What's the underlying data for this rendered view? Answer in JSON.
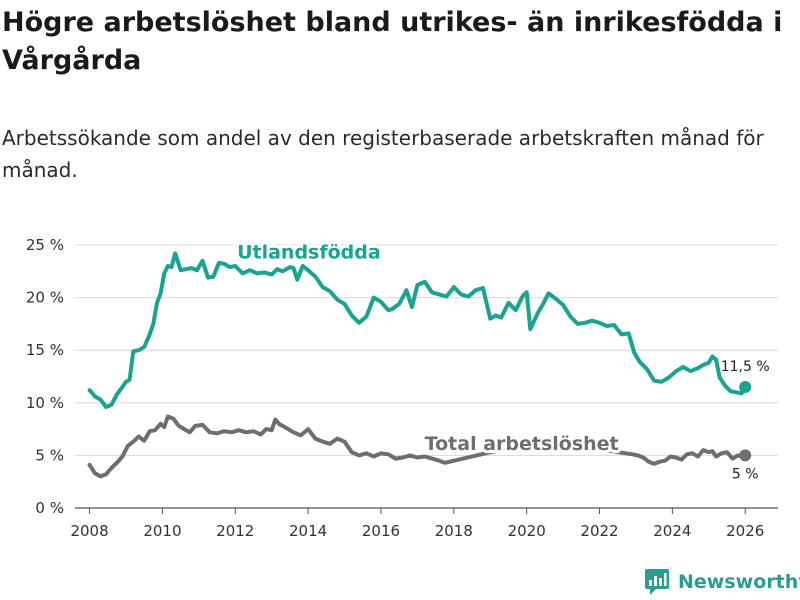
{
  "title": "Högre arbetslöshet bland utrikes- än inrikesfödda i Vårgårda",
  "subtitle": "Arbetssökande som andel av den registerbaserade arbetskraften månad för månad.",
  "brand": "Newsworthy",
  "chart_data": {
    "type": "line",
    "title": "Högre arbetslöshet bland utrikes- än inrikesfödda i Vårgårda",
    "xlabel": "",
    "ylabel": "",
    "xlim": [
      2007.6,
      2026.9
    ],
    "ylim": [
      0,
      25
    ],
    "grid": true,
    "x_ticks": [
      2008,
      2010,
      2012,
      2014,
      2016,
      2018,
      2020,
      2022,
      2024,
      2026
    ],
    "x_tick_labels": [
      "2008",
      "2010",
      "2012",
      "2014",
      "2016",
      "2018",
      "2020",
      "2022",
      "2024",
      "2026"
    ],
    "y_ticks": [
      0,
      5,
      10,
      15,
      20,
      25
    ],
    "y_tick_labels": [
      "0 %",
      "5 %",
      "10 %",
      "15 %",
      "20 %",
      "25 %"
    ],
    "series": [
      {
        "name": "Utlandsfödda",
        "color": "#1aa391",
        "end_label": "11,5 %",
        "x": [
          2008.0,
          2008.15,
          2008.3,
          2008.45,
          2008.6,
          2008.75,
          2008.9,
          2009.0,
          2009.1,
          2009.2,
          2009.35,
          2009.5,
          2009.65,
          2009.75,
          2009.85,
          2009.95,
          2010.05,
          2010.15,
          2010.25,
          2010.35,
          2010.5,
          2010.65,
          2010.8,
          2010.95,
          2011.1,
          2011.25,
          2011.4,
          2011.55,
          2011.7,
          2011.85,
          2012.0,
          2012.2,
          2012.4,
          2012.6,
          2012.8,
          2013.0,
          2013.15,
          2013.3,
          2013.5,
          2013.6,
          2013.7,
          2013.85,
          2014.0,
          2014.2,
          2014.4,
          2014.6,
          2014.8,
          2015.0,
          2015.2,
          2015.4,
          2015.6,
          2015.8,
          2016.0,
          2016.2,
          2016.3,
          2016.5,
          2016.7,
          2016.85,
          2017.0,
          2017.2,
          2017.4,
          2017.6,
          2017.8,
          2018.0,
          2018.2,
          2018.4,
          2018.6,
          2018.8,
          2019.0,
          2019.15,
          2019.3,
          2019.5,
          2019.7,
          2019.9,
          2020.0,
          2020.1,
          2020.3,
          2020.45,
          2020.6,
          2020.8,
          2021.0,
          2021.2,
          2021.4,
          2021.6,
          2021.8,
          2022.0,
          2022.2,
          2022.4,
          2022.6,
          2022.8,
          2022.95,
          2023.1,
          2023.3,
          2023.5,
          2023.7,
          2023.9,
          2024.1,
          2024.3,
          2024.5,
          2024.7,
          2024.85,
          2025.0,
          2025.1,
          2025.2,
          2025.3,
          2025.45,
          2025.6,
          2025.75,
          2025.9,
          2026.0
        ],
        "values": [
          11.2,
          10.6,
          10.3,
          9.6,
          9.8,
          10.8,
          11.5,
          12.0,
          12.2,
          14.9,
          15.0,
          15.3,
          16.5,
          17.5,
          19.5,
          20.4,
          22.3,
          23.0,
          22.9,
          24.2,
          22.6,
          22.7,
          22.8,
          22.6,
          23.5,
          21.9,
          22.0,
          23.3,
          23.2,
          22.9,
          23.0,
          22.3,
          22.6,
          22.3,
          22.4,
          22.2,
          22.7,
          22.5,
          22.9,
          22.8,
          21.7,
          23.0,
          22.6,
          22.0,
          21.0,
          20.6,
          19.8,
          19.4,
          18.3,
          17.6,
          18.2,
          20.0,
          19.6,
          18.8,
          18.9,
          19.4,
          20.7,
          19.1,
          21.2,
          21.5,
          20.5,
          20.3,
          20.1,
          21.0,
          20.3,
          20.1,
          20.7,
          20.9,
          18.0,
          18.3,
          18.1,
          19.5,
          18.8,
          20.2,
          20.5,
          17.0,
          18.5,
          19.4,
          20.4,
          19.9,
          19.3,
          18.2,
          17.5,
          17.6,
          17.8,
          17.6,
          17.3,
          17.4,
          16.5,
          16.6,
          14.8,
          13.9,
          13.2,
          12.1,
          12.0,
          12.4,
          13.0,
          13.4,
          13.0,
          13.3,
          13.6,
          13.8,
          14.4,
          14.1,
          12.4,
          11.6,
          11.1,
          11.0,
          10.9,
          11.5
        ]
      },
      {
        "name": "Total arbetslöshet",
        "color": "#6e6e6e",
        "end_label": "5 %",
        "x": [
          2008.0,
          2008.15,
          2008.3,
          2008.45,
          2008.6,
          2008.75,
          2008.9,
          2009.05,
          2009.2,
          2009.35,
          2009.5,
          2009.65,
          2009.8,
          2009.95,
          2010.05,
          2010.15,
          2010.3,
          2010.45,
          2010.6,
          2010.75,
          2010.9,
          2011.1,
          2011.3,
          2011.5,
          2011.7,
          2011.9,
          2012.1,
          2012.3,
          2012.5,
          2012.7,
          2012.85,
          2013.0,
          2013.1,
          2013.2,
          2013.4,
          2013.6,
          2013.8,
          2014.0,
          2014.2,
          2014.4,
          2014.6,
          2014.8,
          2015.0,
          2015.2,
          2015.4,
          2015.6,
          2015.8,
          2016.0,
          2016.2,
          2016.4,
          2016.6,
          2016.8,
          2017.0,
          2017.2,
          2017.4,
          2017.6,
          2017.75,
          2020.5,
          2020.6,
          2020.75,
          2020.85,
          2022.9,
          2023.05,
          2023.2,
          2023.35,
          2023.5,
          2023.65,
          2023.8,
          2023.95,
          2024.1,
          2024.25,
          2024.4,
          2024.55,
          2024.7,
          2024.85,
          2025.0,
          2025.1,
          2025.2,
          2025.35,
          2025.5,
          2025.65,
          2025.8,
          2025.9,
          2026.0
        ],
        "values": [
          4.1,
          3.3,
          3.0,
          3.2,
          3.8,
          4.3,
          4.9,
          5.9,
          6.3,
          6.8,
          6.4,
          7.3,
          7.4,
          8.0,
          7.7,
          8.7,
          8.5,
          7.8,
          7.5,
          7.2,
          7.8,
          7.9,
          7.2,
          7.1,
          7.3,
          7.2,
          7.4,
          7.2,
          7.3,
          7.0,
          7.5,
          7.4,
          8.4,
          8.0,
          7.6,
          7.2,
          6.9,
          7.5,
          6.6,
          6.3,
          6.1,
          6.6,
          6.3,
          5.3,
          5.0,
          5.2,
          4.9,
          5.2,
          5.1,
          4.7,
          4.8,
          5.0,
          4.8,
          4.9,
          4.7,
          4.5,
          4.3,
          6.5,
          6.6,
          6.4,
          6.2,
          5.1,
          5.0,
          4.8,
          4.4,
          4.2,
          4.4,
          4.5,
          4.9,
          4.8,
          4.6,
          5.1,
          5.2,
          4.9,
          5.5,
          5.3,
          5.4,
          4.9,
          5.2,
          5.3,
          4.7,
          5.0,
          4.9,
          5.0
        ]
      }
    ]
  }
}
